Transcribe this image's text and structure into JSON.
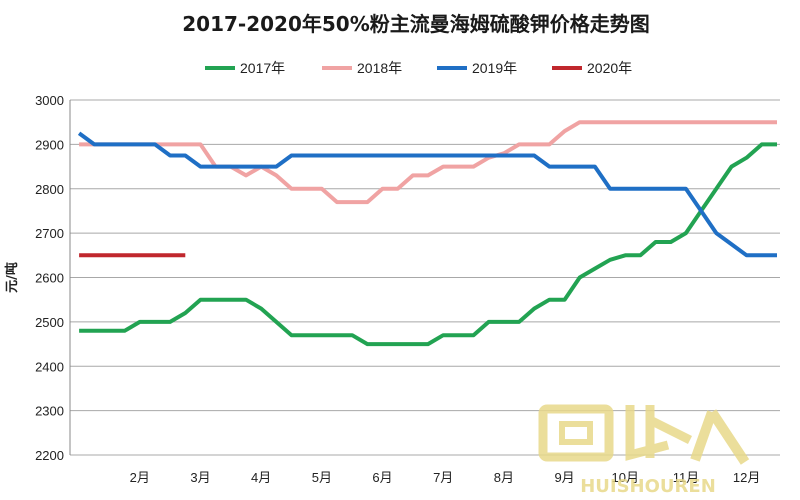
{
  "chart_data": {
    "type": "line",
    "title": "2017-2020年50%粉主流曼海姆硫酸钾价格走势图",
    "ylabel": "元/吨",
    "xlabel": "",
    "ylim": [
      2200,
      3000
    ],
    "xlim": [
      0.85,
      12.55
    ],
    "yticks": [
      2200,
      2300,
      2400,
      2500,
      2600,
      2700,
      2800,
      2900,
      3000
    ],
    "xticks": [
      {
        "x": 2,
        "label": "2月"
      },
      {
        "x": 3,
        "label": "3月"
      },
      {
        "x": 4,
        "label": "4月"
      },
      {
        "x": 5,
        "label": "5月"
      },
      {
        "x": 6,
        "label": "6月"
      },
      {
        "x": 7,
        "label": "7月"
      },
      {
        "x": 8,
        "label": "8月"
      },
      {
        "x": 9,
        "label": "9月"
      },
      {
        "x": 10,
        "label": "10月"
      },
      {
        "x": 11,
        "label": "11月"
      },
      {
        "x": 12,
        "label": "12月"
      }
    ],
    "grid": true,
    "legend_position": "top",
    "series": [
      {
        "name": "2017年",
        "color": "#22a352",
        "x": [
          1,
          1.25,
          1.5,
          1.75,
          2,
          2.25,
          2.5,
          2.75,
          3,
          3.25,
          3.5,
          3.75,
          4,
          4.25,
          4.5,
          4.75,
          5,
          5.25,
          5.5,
          5.75,
          6,
          6.25,
          6.5,
          6.75,
          7,
          7.25,
          7.5,
          7.75,
          8,
          8.25,
          8.5,
          8.75,
          9,
          9.25,
          9.5,
          9.75,
          10,
          10.25,
          10.5,
          10.75,
          11,
          11.25,
          11.5,
          11.75,
          12,
          12.25,
          12.5
        ],
        "values": [
          2480,
          2480,
          2480,
          2480,
          2500,
          2500,
          2500,
          2520,
          2550,
          2550,
          2550,
          2550,
          2530,
          2500,
          2470,
          2470,
          2470,
          2470,
          2470,
          2450,
          2450,
          2450,
          2450,
          2450,
          2470,
          2470,
          2470,
          2500,
          2500,
          2500,
          2530,
          2550,
          2550,
          2600,
          2620,
          2640,
          2650,
          2650,
          2680,
          2680,
          2700,
          2750,
          2800,
          2850,
          2870,
          2900,
          2900
        ]
      },
      {
        "name": "2018年",
        "color": "#f0a3a3",
        "x": [
          1,
          1.25,
          1.5,
          1.75,
          2,
          2.25,
          2.5,
          2.75,
          3,
          3.25,
          3.5,
          3.75,
          4,
          4.25,
          4.5,
          4.75,
          5,
          5.25,
          5.5,
          5.75,
          6,
          6.25,
          6.5,
          6.75,
          7,
          7.25,
          7.5,
          7.75,
          8,
          8.25,
          8.5,
          8.75,
          9,
          9.25,
          9.5,
          9.75,
          10,
          10.25,
          10.5,
          10.75,
          11,
          11.25,
          11.5,
          11.75,
          12,
          12.25,
          12.5
        ],
        "values": [
          2900,
          2900,
          2900,
          2900,
          2900,
          2900,
          2900,
          2900,
          2900,
          2850,
          2850,
          2830,
          2850,
          2830,
          2800,
          2800,
          2800,
          2770,
          2770,
          2770,
          2800,
          2800,
          2830,
          2830,
          2850,
          2850,
          2850,
          2870,
          2880,
          2900,
          2900,
          2900,
          2930,
          2950,
          2950,
          2950,
          2950,
          2950,
          2950,
          2950,
          2950,
          2950,
          2950,
          2950,
          2950,
          2950,
          2950
        ]
      },
      {
        "name": "2019年",
        "color": "#1f6fc5",
        "x": [
          1,
          1.25,
          1.5,
          1.75,
          2,
          2.25,
          2.5,
          2.75,
          3,
          3.25,
          3.5,
          3.75,
          4,
          4.25,
          4.5,
          4.75,
          5,
          5.25,
          5.5,
          5.75,
          6,
          6.25,
          6.5,
          6.75,
          7,
          7.25,
          7.5,
          7.75,
          8,
          8.25,
          8.5,
          8.75,
          9,
          9.25,
          9.5,
          9.75,
          10,
          10.25,
          10.5,
          10.75,
          11,
          11.25,
          11.5,
          11.75,
          12,
          12.25,
          12.5
        ],
        "values": [
          2925,
          2900,
          2900,
          2900,
          2900,
          2900,
          2875,
          2875,
          2850,
          2850,
          2850,
          2850,
          2850,
          2850,
          2875,
          2875,
          2875,
          2875,
          2875,
          2875,
          2875,
          2875,
          2875,
          2875,
          2875,
          2875,
          2875,
          2875,
          2875,
          2875,
          2875,
          2850,
          2850,
          2850,
          2850,
          2800,
          2800,
          2800,
          2800,
          2800,
          2800,
          2750,
          2700,
          2675,
          2650,
          2650,
          2650
        ]
      },
      {
        "name": "2020年",
        "color": "#c0272d",
        "x": [
          1,
          1.25,
          1.5,
          1.75,
          2,
          2.25,
          2.5,
          2.75
        ],
        "values": [
          2650,
          2650,
          2650,
          2650,
          2650,
          2650,
          2650,
          2650
        ]
      }
    ]
  },
  "watermark": {
    "main": "回收人",
    "sub": "HUISHOUREN",
    "color": "#e8d98a"
  }
}
